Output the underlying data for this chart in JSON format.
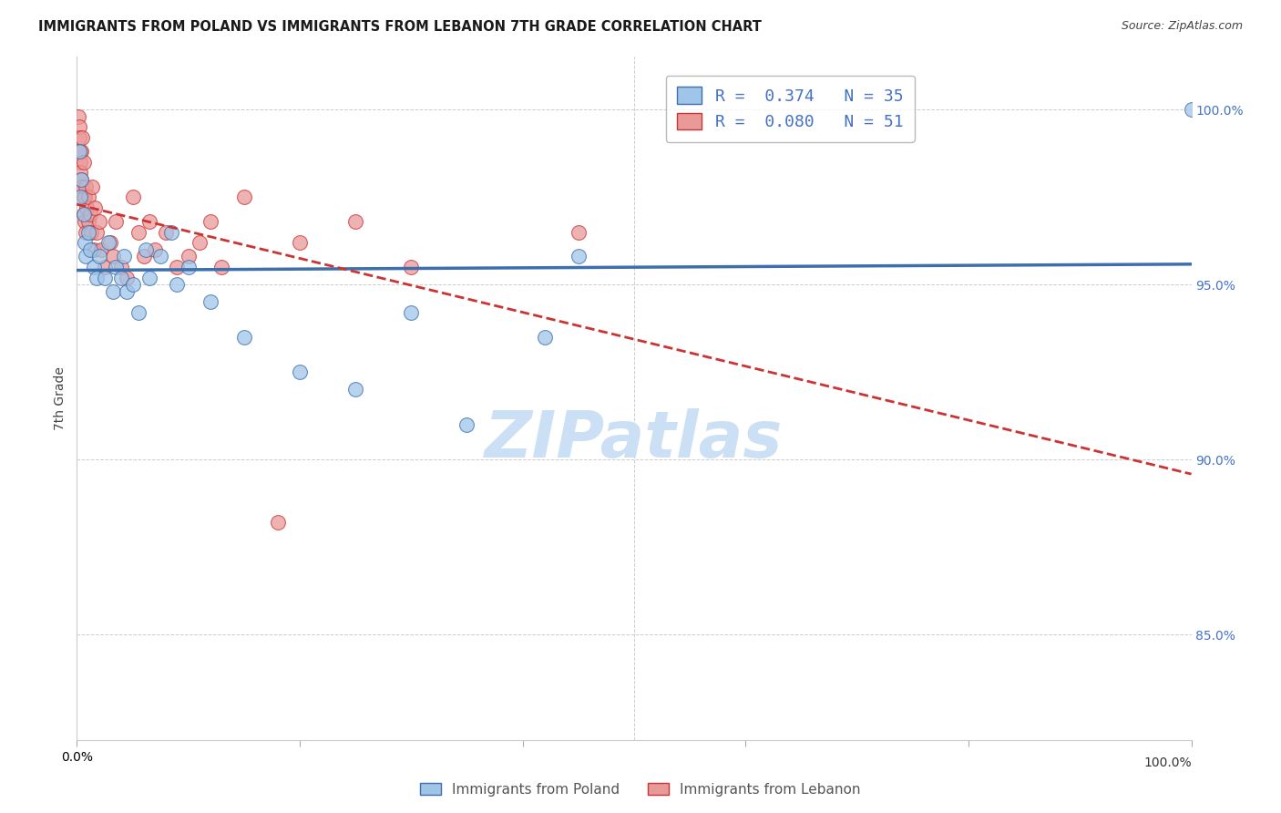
{
  "title": "IMMIGRANTS FROM POLAND VS IMMIGRANTS FROM LEBANON 7TH GRADE CORRELATION CHART",
  "source": "Source: ZipAtlas.com",
  "ylabel": "7th Grade",
  "legend_poland": "Immigrants from Poland",
  "legend_lebanon": "Immigrants from Lebanon",
  "R_poland": "0.374",
  "N_poland": "35",
  "R_lebanon": "0.080",
  "N_lebanon": "51",
  "poland_color": "#9fc5e8",
  "lebanon_color": "#ea9999",
  "poland_line_color": "#3d6fad",
  "lebanon_line_color": "#cc3333",
  "right_axis_color": "#4472c4",
  "xlim": [
    0.0,
    1.0
  ],
  "ylim": [
    0.82,
    1.015
  ],
  "right_yticks": [
    0.85,
    0.9,
    0.95,
    1.0
  ],
  "poland_x": [
    0.002,
    0.003,
    0.004,
    0.006,
    0.007,
    0.008,
    0.01,
    0.012,
    0.015,
    0.018,
    0.02,
    0.025,
    0.028,
    0.032,
    0.035,
    0.04,
    0.042,
    0.045,
    0.05,
    0.055,
    0.062,
    0.065,
    0.075,
    0.085,
    0.09,
    0.1,
    0.12,
    0.15,
    0.2,
    0.25,
    0.3,
    0.35,
    0.42,
    0.45,
    1.0
  ],
  "poland_y": [
    0.988,
    0.975,
    0.98,
    0.97,
    0.962,
    0.958,
    0.965,
    0.96,
    0.955,
    0.952,
    0.958,
    0.952,
    0.962,
    0.948,
    0.955,
    0.952,
    0.958,
    0.948,
    0.95,
    0.942,
    0.96,
    0.952,
    0.958,
    0.965,
    0.95,
    0.955,
    0.945,
    0.935,
    0.925,
    0.92,
    0.942,
    0.91,
    0.935,
    0.958,
    1.0
  ],
  "lebanon_x": [
    0.001,
    0.002,
    0.002,
    0.003,
    0.003,
    0.003,
    0.004,
    0.004,
    0.005,
    0.005,
    0.006,
    0.006,
    0.006,
    0.007,
    0.007,
    0.008,
    0.008,
    0.009,
    0.01,
    0.01,
    0.012,
    0.013,
    0.014,
    0.015,
    0.016,
    0.018,
    0.02,
    0.022,
    0.025,
    0.03,
    0.032,
    0.035,
    0.04,
    0.045,
    0.05,
    0.055,
    0.06,
    0.065,
    0.07,
    0.08,
    0.09,
    0.1,
    0.11,
    0.12,
    0.13,
    0.15,
    0.18,
    0.2,
    0.25,
    0.3,
    0.45
  ],
  "lebanon_y": [
    0.998,
    0.995,
    0.992,
    0.988,
    0.985,
    0.982,
    0.98,
    0.988,
    0.992,
    0.978,
    0.985,
    0.975,
    0.97,
    0.968,
    0.975,
    0.965,
    0.978,
    0.972,
    0.968,
    0.975,
    0.97,
    0.965,
    0.978,
    0.96,
    0.972,
    0.965,
    0.968,
    0.96,
    0.955,
    0.962,
    0.958,
    0.968,
    0.955,
    0.952,
    0.975,
    0.965,
    0.958,
    0.968,
    0.96,
    0.965,
    0.955,
    0.958,
    0.962,
    0.968,
    0.955,
    0.975,
    0.882,
    0.962,
    0.968,
    0.955,
    0.965
  ]
}
